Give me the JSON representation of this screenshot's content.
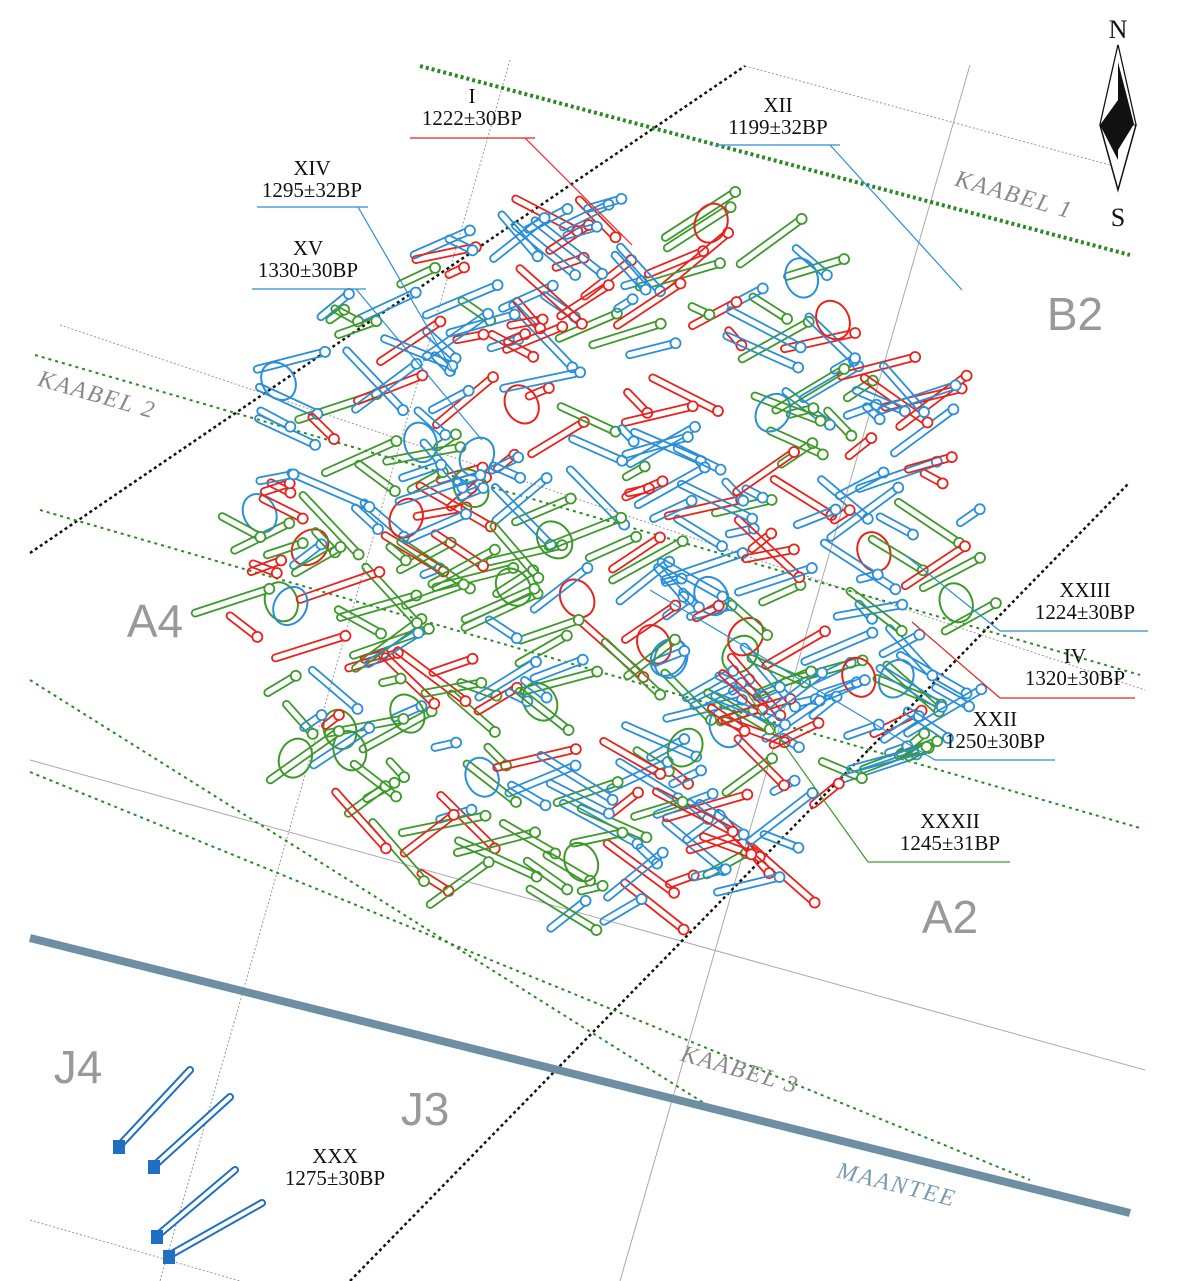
{
  "compass": {
    "north": "N",
    "south": "S"
  },
  "grid_labels": [
    "B2",
    "A4",
    "A2",
    "J4",
    "J3"
  ],
  "cables": [
    "KAABEL 1",
    "KAABEL 2",
    "KAABEL 3"
  ],
  "road": "MAANTEE",
  "burials": [
    {
      "id": "I",
      "date": "1222±30BP",
      "color": "#e8231c"
    },
    {
      "id": "XII",
      "date": "1199±32BP",
      "color": "#2a8fd6"
    },
    {
      "id": "XIV",
      "date": "1295±32BP",
      "color": "#2a8fd6"
    },
    {
      "id": "XV",
      "date": "1330±30BP",
      "color": "#2a8fd6"
    },
    {
      "id": "XXIII",
      "date": "1224±30BP",
      "color": "#2a8fd6"
    },
    {
      "id": "IV",
      "date": "1320±30BP",
      "color": "#e8231c"
    },
    {
      "id": "XXII",
      "date": "1250±30BP",
      "color": "#2a8fd6"
    },
    {
      "id": "XXXII",
      "date": "1245±31BP",
      "color": "#3d9a2a"
    },
    {
      "id": "XXX",
      "date": "1275±30BP",
      "color": "#1f6fc2"
    }
  ]
}
